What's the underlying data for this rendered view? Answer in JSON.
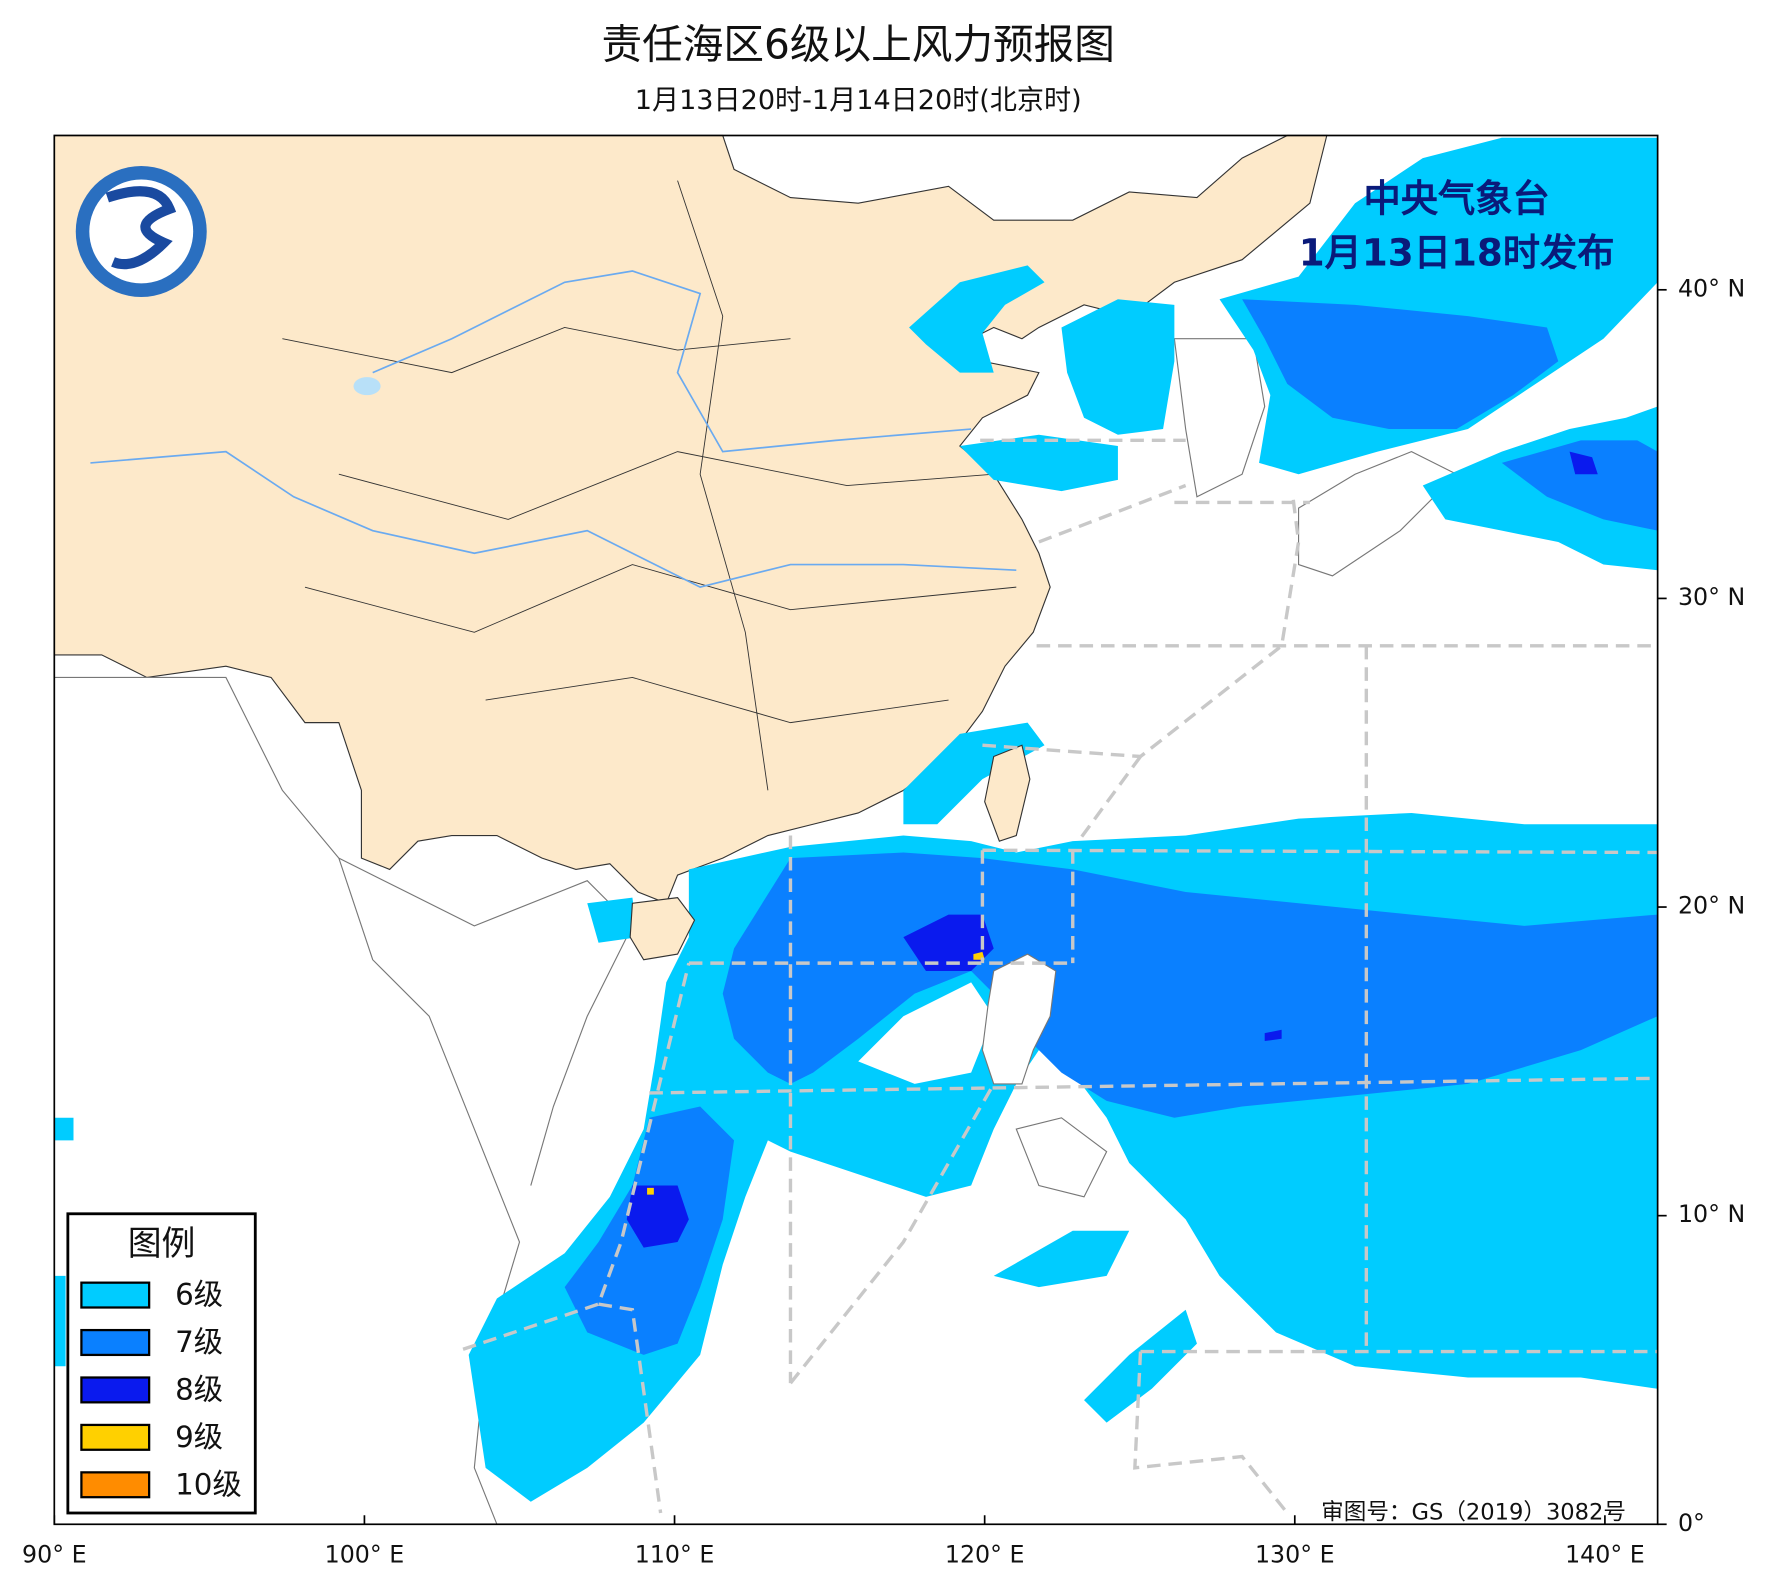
{
  "header": {
    "title": "责任海区6级以上风力预报图",
    "subtitle": "1月13日20时-1月14日20时(北京时)"
  },
  "issuer": {
    "name": "中央气象台",
    "issue_time": "1月13日18时发布"
  },
  "approval": "审图号：GS（2019）3082号",
  "legend": {
    "title": "图例",
    "items": [
      {
        "label": "6级",
        "color": "#00ccff"
      },
      {
        "label": "7级",
        "color": "#0a80ff"
      },
      {
        "label": "8级",
        "color": "#0a1aee"
      },
      {
        "label": "9级",
        "color": "#ffd000"
      },
      {
        "label": "10级",
        "color": "#ff8c00"
      }
    ]
  },
  "map": {
    "lon_range": [
      90,
      141.7
    ],
    "lat_range": [
      0,
      45
    ],
    "lon_ticks": [
      {
        "value": 90,
        "label": "90° E"
      },
      {
        "value": 100,
        "label": "100° E"
      },
      {
        "value": 110,
        "label": "110° E"
      },
      {
        "value": 120,
        "label": "120° E"
      },
      {
        "value": 130,
        "label": "130° E"
      },
      {
        "value": 140,
        "label": "140° E"
      }
    ],
    "lat_ticks": [
      {
        "value": 0,
        "label": "0°"
      },
      {
        "value": 10,
        "label": "10° N"
      },
      {
        "value": 20,
        "label": "20° N"
      },
      {
        "value": 30,
        "label": "30° N"
      },
      {
        "value": 40,
        "label": "40° N"
      }
    ]
  }
}
